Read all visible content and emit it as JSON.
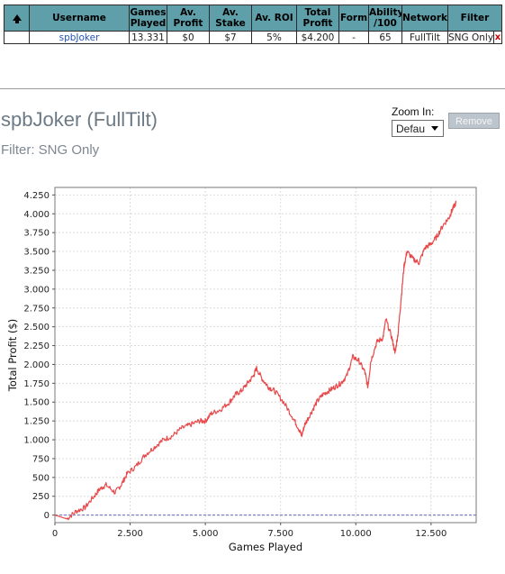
{
  "mini_icons": [
    "toolbar-icon-1",
    "toolbar-icon-2",
    "refresh-icon"
  ],
  "table": {
    "headers": {
      "sort_icon": "up-arrow-icon",
      "username": "Username",
      "games_played": "Games Played",
      "av_profit": "Av. Profit",
      "av_stake": "Av. Stake",
      "av_roi": "Av. ROI",
      "total_profit": "Total Profit",
      "form": "Form",
      "ability": "Ability /100",
      "network": "Network",
      "filter": "Filter"
    },
    "row": {
      "username": "spbJoker",
      "games_played": "13.331",
      "av_profit": "$0",
      "av_stake": "$7",
      "av_roi": "5%",
      "total_profit": "$4.200",
      "form": "-",
      "ability": "65",
      "network": "FullTilt",
      "filter": "SNG Only",
      "remove": "x"
    }
  },
  "title": "spbJoker (FullTilt)",
  "filter_text": "Filter: SNG Only",
  "zoom": {
    "label": "Zoom In:",
    "selected": "Defau"
  },
  "remove_button": "Remove",
  "colors": {
    "header_bg": "#5e9fa9",
    "line": "#e8494a",
    "zero_line": "#6a6ab8"
  },
  "chart_data": {
    "type": "line",
    "xlabel": "Games Played",
    "ylabel": "Total Profit ($)",
    "xlim": [
      0,
      14000
    ],
    "ylim": [
      -100,
      4350
    ],
    "x_ticks": [
      0,
      2500,
      5000,
      7500,
      10000,
      12500
    ],
    "x_tick_labels": [
      "0",
      "2.500",
      "5.000",
      "7.500",
      "10.000",
      "12.500"
    ],
    "y_ticks": [
      0,
      250,
      500,
      750,
      1000,
      1250,
      1500,
      1750,
      2000,
      2250,
      2500,
      2750,
      3000,
      3250,
      3500,
      3750,
      4000,
      4250
    ],
    "y_tick_labels": [
      "0",
      "250",
      "500",
      "750",
      "1.000",
      "1.250",
      "1.500",
      "1.750",
      "2.000",
      "2.250",
      "2.500",
      "2.750",
      "3.000",
      "3.250",
      "3.500",
      "3.750",
      "4.000",
      "4.250"
    ],
    "grid": true,
    "series": [
      {
        "x": [
          0,
          400,
          700,
          1000,
          1300,
          1500,
          1700,
          2000,
          2200,
          2400,
          2700,
          3000,
          3300,
          3600,
          3900,
          4200,
          4500,
          4800,
          5000,
          5200,
          5500,
          5800,
          6000,
          6200,
          6400,
          6600,
          6700,
          6900,
          7100,
          7300,
          7600,
          7900,
          8100,
          8200,
          8300,
          8500,
          8700,
          8900,
          9100,
          9300,
          9500,
          9700,
          9900,
          10100,
          10300,
          10400,
          10500,
          10700,
          10900,
          11000,
          11200,
          11300,
          11400,
          11500,
          11600,
          11700,
          11900,
          12100,
          12300,
          12500,
          12700,
          12900,
          13100,
          13200,
          13331
        ],
        "y": [
          0,
          -50,
          50,
          100,
          250,
          350,
          400,
          300,
          400,
          550,
          650,
          800,
          900,
          1000,
          1050,
          1150,
          1200,
          1250,
          1250,
          1350,
          1400,
          1500,
          1600,
          1650,
          1750,
          1850,
          1950,
          1800,
          1700,
          1650,
          1500,
          1300,
          1150,
          1050,
          1200,
          1350,
          1500,
          1600,
          1650,
          1700,
          1750,
          1850,
          2100,
          2050,
          1900,
          1700,
          2050,
          2300,
          2350,
          2600,
          2350,
          2150,
          2400,
          2850,
          3300,
          3500,
          3400,
          3350,
          3550,
          3600,
          3700,
          3850,
          3950,
          4050,
          4150
        ]
      }
    ]
  }
}
